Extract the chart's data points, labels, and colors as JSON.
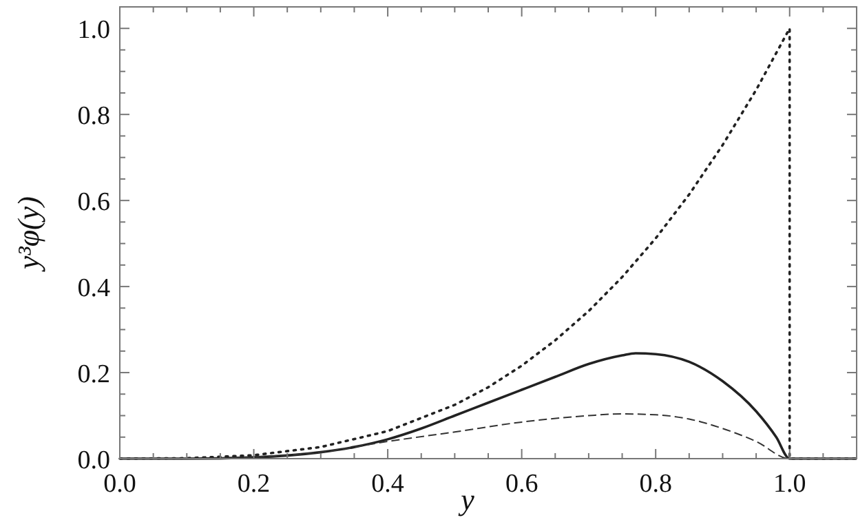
{
  "chart_data": {
    "type": "line",
    "xlabel": "y",
    "ylabel": "y³φ(y)",
    "xlim": [
      0,
      1.1
    ],
    "ylim": [
      0,
      1.05
    ],
    "xticks": [
      {
        "value": 0,
        "label": "0.0"
      },
      {
        "value": 0.05,
        "label": null
      },
      {
        "value": 0.1,
        "label": null
      },
      {
        "value": 0.15,
        "label": null
      },
      {
        "value": 0.2,
        "label": "0.2"
      },
      {
        "value": 0.25,
        "label": null
      },
      {
        "value": 0.3,
        "label": null
      },
      {
        "value": 0.35,
        "label": null
      },
      {
        "value": 0.4,
        "label": "0.4"
      },
      {
        "value": 0.45,
        "label": null
      },
      {
        "value": 0.5,
        "label": null
      },
      {
        "value": 0.55,
        "label": null
      },
      {
        "value": 0.6,
        "label": "0.6"
      },
      {
        "value": 0.65,
        "label": null
      },
      {
        "value": 0.7,
        "label": null
      },
      {
        "value": 0.75,
        "label": null
      },
      {
        "value": 0.8,
        "label": "0.8"
      },
      {
        "value": 0.85,
        "label": null
      },
      {
        "value": 0.9,
        "label": null
      },
      {
        "value": 0.95,
        "label": null
      },
      {
        "value": 1,
        "label": "1.0"
      },
      {
        "value": 1.05,
        "label": null
      }
    ],
    "yticks": [
      {
        "value": 0,
        "label": "0.0"
      },
      {
        "value": 0.05,
        "label": null
      },
      {
        "value": 0.1,
        "label": null
      },
      {
        "value": 0.15,
        "label": null
      },
      {
        "value": 0.2,
        "label": "0.2"
      },
      {
        "value": 0.25,
        "label": null
      },
      {
        "value": 0.3,
        "label": null
      },
      {
        "value": 0.35,
        "label": null
      },
      {
        "value": 0.4,
        "label": "0.4"
      },
      {
        "value": 0.45,
        "label": null
      },
      {
        "value": 0.5,
        "label": null
      },
      {
        "value": 0.55,
        "label": null
      },
      {
        "value": 0.6,
        "label": "0.6"
      },
      {
        "value": 0.65,
        "label": null
      },
      {
        "value": 0.7,
        "label": null
      },
      {
        "value": 0.75,
        "label": null
      },
      {
        "value": 0.8,
        "label": "0.8"
      },
      {
        "value": 0.85,
        "label": null
      },
      {
        "value": 0.9,
        "label": null
      },
      {
        "value": 0.95,
        "label": null
      },
      {
        "value": 1,
        "label": "1.0"
      }
    ],
    "grid": false,
    "marker": "none",
    "series": [
      {
        "color": "#222222",
        "line_style": "solid",
        "x": [
          0,
          0.1,
          0.2,
          0.3,
          0.35,
          0.4,
          0.45,
          0.5,
          0.55,
          0.6,
          0.65,
          0.7,
          0.75,
          0.77,
          0.8,
          0.85,
          0.9,
          0.95,
          0.98,
          1.0,
          1.1
        ],
        "values": [
          0,
          0,
          0.003,
          0.015,
          0.027,
          0.045,
          0.07,
          0.1,
          0.13,
          0.16,
          0.19,
          0.22,
          0.24,
          0.245,
          0.243,
          0.225,
          0.18,
          0.11,
          0.05,
          0,
          0
        ]
      },
      {
        "color": "#333333",
        "line_style": "dashed",
        "x": [
          0,
          0.1,
          0.2,
          0.3,
          0.4,
          0.5,
          0.6,
          0.7,
          0.75,
          0.8,
          0.85,
          0.9,
          0.95,
          1.0,
          1.1
        ],
        "values": [
          0,
          0,
          0.004,
          0.015,
          0.04,
          0.062,
          0.085,
          0.1,
          0.104,
          0.102,
          0.092,
          0.07,
          0.04,
          0,
          0
        ]
      },
      {
        "color": "#222222",
        "line_style": "dotted",
        "x": [
          0,
          0.1,
          0.2,
          0.3,
          0.4,
          0.5,
          0.55,
          0.6,
          0.65,
          0.7,
          0.75,
          0.8,
          0.85,
          0.9,
          0.95,
          1.0,
          1.0,
          1.1
        ],
        "values": [
          0,
          0.001,
          0.008,
          0.027,
          0.064,
          0.125,
          0.166,
          0.216,
          0.275,
          0.343,
          0.422,
          0.512,
          0.614,
          0.729,
          0.857,
          1.0,
          0,
          0
        ]
      }
    ]
  }
}
